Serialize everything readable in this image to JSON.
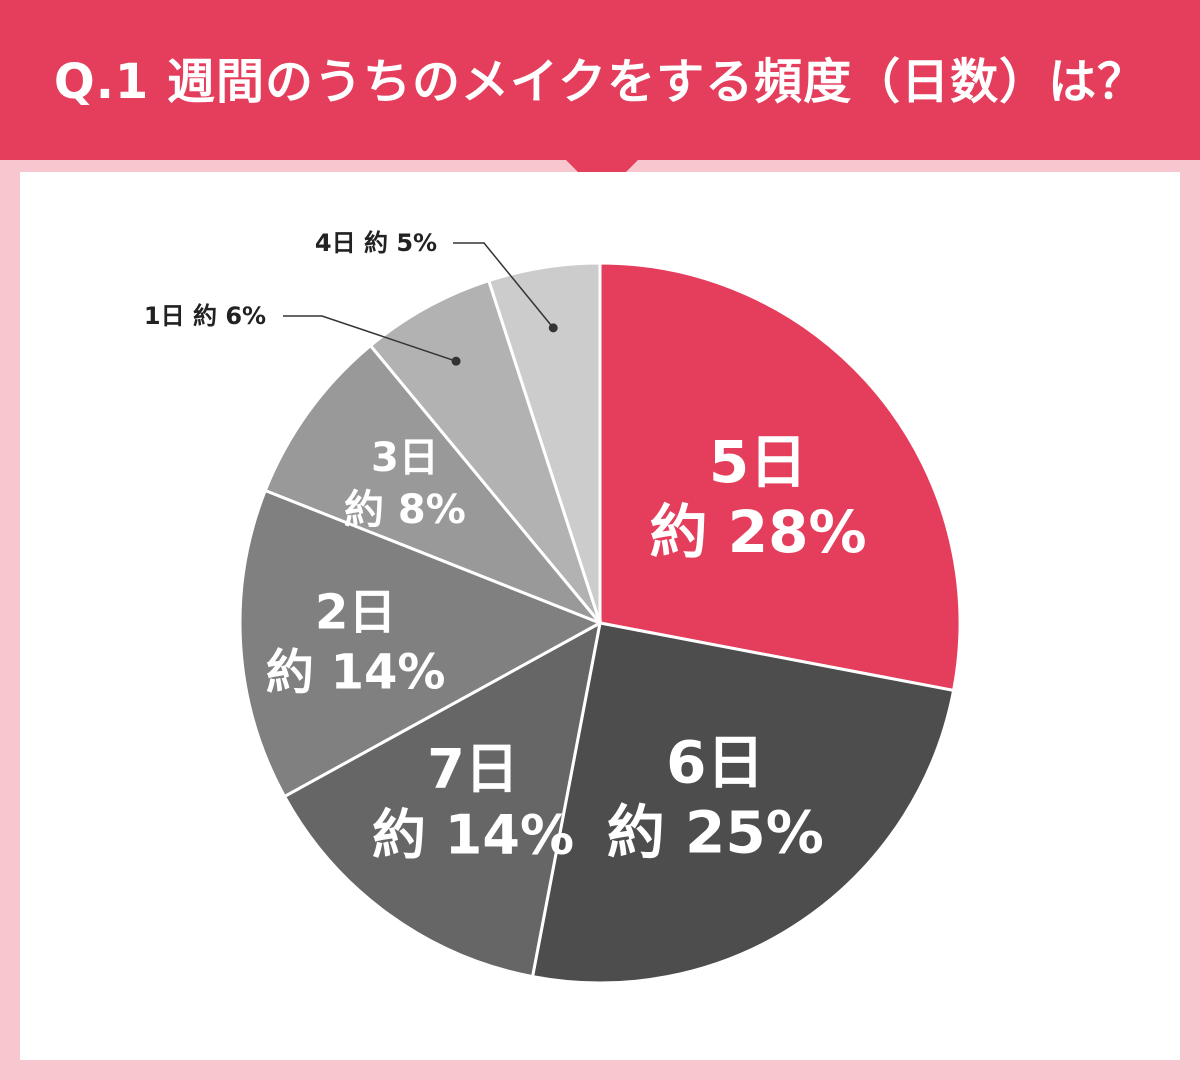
{
  "title": "Q.1 週間のうちのメイクをする頻度（日数）は？",
  "colors": {
    "header": "#e43e5c",
    "background": "#f7c6cf",
    "panel": "#ffffff",
    "slice_border": "#ffffff",
    "leader_line": "#333333"
  },
  "chart_data": {
    "type": "pie",
    "title": "Q.1 週間のうちのメイクをする頻度（日数）は？",
    "start": "12 o'clock",
    "direction": "clockwise",
    "slices": [
      {
        "category": "5日",
        "value_label": "約 28%",
        "value": 28,
        "color": "#e43e5c",
        "label_position": "inside"
      },
      {
        "category": "6日",
        "value_label": "約 25%",
        "value": 25,
        "color": "#4d4d4d",
        "label_position": "inside"
      },
      {
        "category": "7日",
        "value_label": "約 14%",
        "value": 14,
        "color": "#666666",
        "label_position": "inside"
      },
      {
        "category": "2日",
        "value_label": "約 14%",
        "value": 14,
        "color": "#808080",
        "label_position": "inside"
      },
      {
        "category": "3日",
        "value_label": "約 8%",
        "value": 8,
        "color": "#999999",
        "label_position": "inside"
      },
      {
        "category": "1日",
        "value_label": "約 6%",
        "value": 6,
        "color": "#b2b2b2",
        "label_position": "outside"
      },
      {
        "category": "4日",
        "value_label": "約 5%",
        "value": 5,
        "color": "#cccccc",
        "label_position": "outside"
      }
    ]
  }
}
